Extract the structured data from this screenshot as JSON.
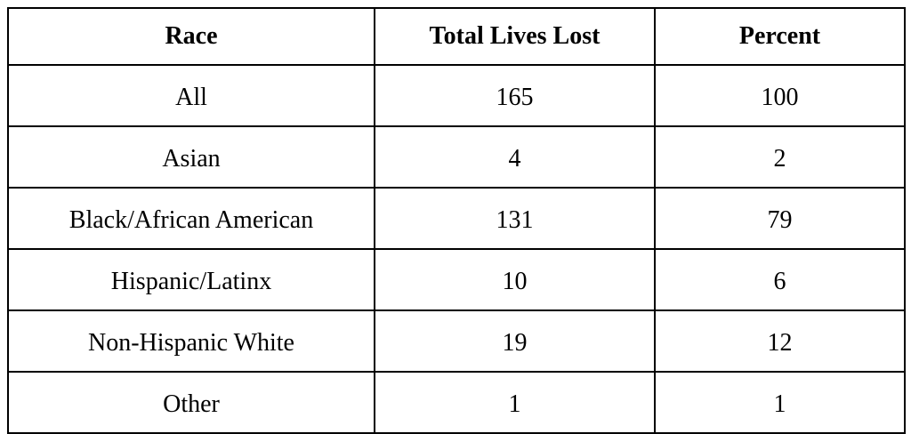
{
  "table": {
    "header": [
      "Race",
      "Total Lives Lost",
      "Percent"
    ],
    "rows": [
      [
        "All",
        165,
        100
      ],
      [
        "Asian",
        4,
        2
      ],
      [
        "Black/African American",
        131,
        79
      ],
      [
        "Hispanic/Latinx",
        10,
        6
      ],
      [
        "Non-Hispanic White",
        19,
        12
      ],
      [
        "Other",
        1,
        1
      ]
    ]
  }
}
